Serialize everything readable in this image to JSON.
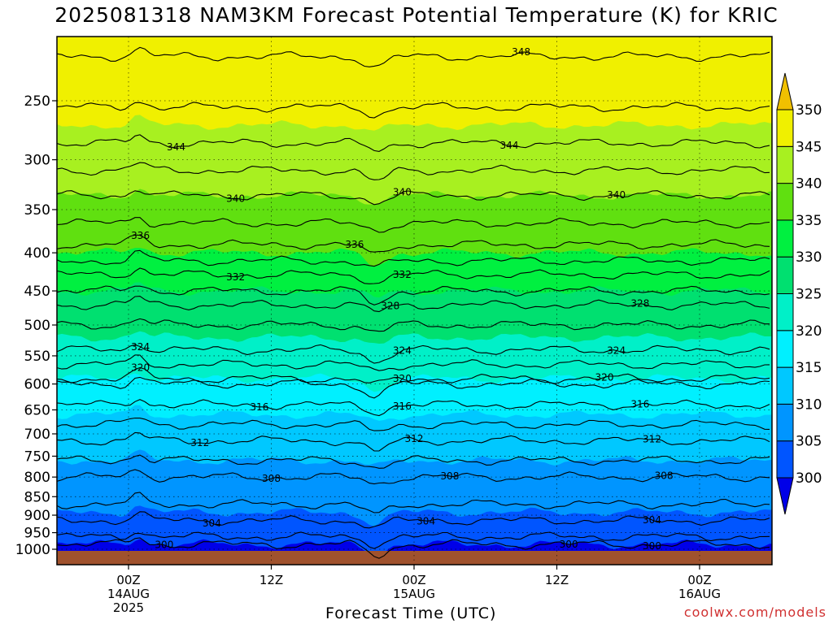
{
  "title": "2025081318 NAM3KM Forecast Potential Temperature (K) for KRIC",
  "credit": "coolwx.com/models",
  "chart_data": {
    "type": "heatmap",
    "title": "2025081318 NAM3KM Forecast Potential Temperature (K) for KRIC",
    "xlabel": "Forecast Time (UTC)",
    "ylabel": "",
    "x_ticks": [
      {
        "hour": 6,
        "lines": [
          "00Z",
          "14AUG",
          "2025"
        ]
      },
      {
        "hour": 18,
        "lines": [
          "12Z"
        ]
      },
      {
        "hour": 30,
        "lines": [
          "00Z",
          "15AUG"
        ]
      },
      {
        "hour": 42,
        "lines": [
          "12Z"
        ]
      },
      {
        "hour": 54,
        "lines": [
          "00Z",
          "16AUG"
        ]
      }
    ],
    "xlim": [
      0,
      60
    ],
    "y_ticks": [
      250,
      300,
      350,
      400,
      450,
      500,
      550,
      600,
      650,
      700,
      750,
      800,
      850,
      900,
      950,
      1000
    ],
    "ylim": [
      1025,
      200
    ],
    "grid": true,
    "colorbar": {
      "levels": [
        300,
        305,
        310,
        315,
        320,
        325,
        330,
        335,
        340,
        345,
        350
      ],
      "colors": [
        "#0000e8",
        "#0055ff",
        "#0095ff",
        "#00c8ff",
        "#00f0ff",
        "#00f0c8",
        "#00e070",
        "#00f040",
        "#60e010",
        "#a8f020",
        "#f0f000",
        "#f0c000"
      ]
    },
    "contours": [
      {
        "value": 300,
        "p": 985,
        "labels": [
          {
            "hour": 9,
            "text": "300"
          },
          {
            "hour": 43,
            "text": "300"
          },
          {
            "hour": 50,
            "text": "300"
          }
        ]
      },
      {
        "value": 302,
        "p": 962,
        "labels": []
      },
      {
        "value": 304,
        "p": 915,
        "labels": [
          {
            "hour": 13,
            "text": "304"
          },
          {
            "hour": 31,
            "text": "304"
          },
          {
            "hour": 50,
            "text": "304"
          }
        ]
      },
      {
        "value": 306,
        "p": 870,
        "labels": []
      },
      {
        "value": 308,
        "p": 800,
        "labels": [
          {
            "hour": 18,
            "text": "308"
          },
          {
            "hour": 33,
            "text": "308"
          },
          {
            "hour": 51,
            "text": "308"
          }
        ]
      },
      {
        "value": 310,
        "p": 760,
        "labels": []
      },
      {
        "value": 312,
        "p": 715,
        "labels": [
          {
            "hour": 12,
            "text": "312"
          },
          {
            "hour": 30,
            "text": "312"
          },
          {
            "hour": 50,
            "text": "312"
          }
        ]
      },
      {
        "value": 314,
        "p": 680,
        "labels": []
      },
      {
        "value": 316,
        "p": 640,
        "labels": [
          {
            "hour": 17,
            "text": "316"
          },
          {
            "hour": 29,
            "text": "316"
          },
          {
            "hour": 49,
            "text": "316"
          }
        ]
      },
      {
        "value": 318,
        "p": 600,
        "labels": []
      },
      {
        "value": 320,
        "p": 590,
        "labels": [
          {
            "hour": 7,
            "text": "320"
          },
          {
            "hour": 29,
            "text": "320"
          },
          {
            "hour": 46,
            "text": "320"
          }
        ]
      },
      {
        "value": 322,
        "p": 565,
        "labels": []
      },
      {
        "value": 324,
        "p": 540,
        "labels": [
          {
            "hour": 7,
            "text": "324"
          },
          {
            "hour": 29,
            "text": "324"
          },
          {
            "hour": 47,
            "text": "324"
          }
        ]
      },
      {
        "value": 326,
        "p": 500,
        "labels": []
      },
      {
        "value": 328,
        "p": 470,
        "labels": [
          {
            "hour": 28,
            "text": "328"
          },
          {
            "hour": 49,
            "text": "328"
          }
        ]
      },
      {
        "value": 330,
        "p": 450,
        "labels": []
      },
      {
        "value": 332,
        "p": 428,
        "labels": [
          {
            "hour": 15,
            "text": "332"
          },
          {
            "hour": 29,
            "text": "332"
          }
        ]
      },
      {
        "value": 334,
        "p": 410,
        "labels": []
      },
      {
        "value": 336,
        "p": 390,
        "labels": [
          {
            "hour": 7,
            "text": "336"
          },
          {
            "hour": 25,
            "text": "336"
          }
        ]
      },
      {
        "value": 338,
        "p": 365,
        "labels": []
      },
      {
        "value": 340,
        "p": 335,
        "labels": [
          {
            "hour": 15,
            "text": "340"
          },
          {
            "hour": 29,
            "text": "340"
          },
          {
            "hour": 47,
            "text": "340"
          }
        ]
      },
      {
        "value": 342,
        "p": 310,
        "labels": []
      },
      {
        "value": 344,
        "p": 285,
        "labels": [
          {
            "hour": 10,
            "text": "344"
          },
          {
            "hour": 38,
            "text": "344"
          }
        ]
      },
      {
        "value": 346,
        "p": 255,
        "labels": []
      },
      {
        "value": 348,
        "p": 218,
        "labels": [
          {
            "hour": 39,
            "text": "348"
          }
        ]
      }
    ]
  }
}
